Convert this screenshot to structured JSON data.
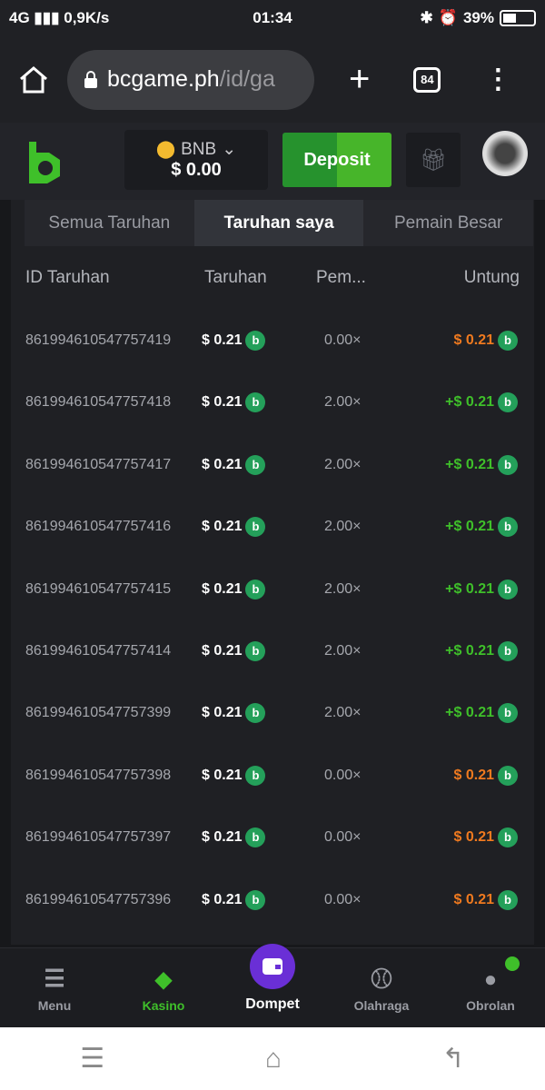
{
  "status": {
    "network": "4G",
    "speed": "0,9K/s",
    "time": "01:34",
    "battery": "39%"
  },
  "browser": {
    "url_host": "bcgame.ph",
    "url_path": "/id/ga",
    "tab_count": "84"
  },
  "header": {
    "currency": "BNB",
    "balance": "$ 0.00",
    "deposit_label": "Deposit"
  },
  "tabs": [
    {
      "label": "Semua Taruhan"
    },
    {
      "label": "Taruhan saya",
      "active": true
    },
    {
      "label": "Pemain Besar"
    }
  ],
  "columns": {
    "id": "ID Taruhan",
    "bet": "Taruhan",
    "mult": "Pem...",
    "profit": "Untung"
  },
  "rows": [
    {
      "id": "861994610547757419",
      "bet": "$ 0.21",
      "mult": "0.00×",
      "profit": "$ 0.21",
      "win": false
    },
    {
      "id": "861994610547757418",
      "bet": "$ 0.21",
      "mult": "2.00×",
      "profit": "+$ 0.21",
      "win": true
    },
    {
      "id": "861994610547757417",
      "bet": "$ 0.21",
      "mult": "2.00×",
      "profit": "+$ 0.21",
      "win": true
    },
    {
      "id": "861994610547757416",
      "bet": "$ 0.21",
      "mult": "2.00×",
      "profit": "+$ 0.21",
      "win": true
    },
    {
      "id": "861994610547757415",
      "bet": "$ 0.21",
      "mult": "2.00×",
      "profit": "+$ 0.21",
      "win": true
    },
    {
      "id": "861994610547757414",
      "bet": "$ 0.21",
      "mult": "2.00×",
      "profit": "+$ 0.21",
      "win": true
    },
    {
      "id": "861994610547757399",
      "bet": "$ 0.21",
      "mult": "2.00×",
      "profit": "+$ 0.21",
      "win": true
    },
    {
      "id": "861994610547757398",
      "bet": "$ 0.21",
      "mult": "0.00×",
      "profit": "$ 0.21",
      "win": false
    },
    {
      "id": "861994610547757397",
      "bet": "$ 0.21",
      "mult": "0.00×",
      "profit": "$ 0.21",
      "win": false
    },
    {
      "id": "861994610547757396",
      "bet": "$ 0.21",
      "mult": "0.00×",
      "profit": "$ 0.21",
      "win": false
    }
  ],
  "nav": [
    {
      "label": "Menu",
      "icon": "menu-icon"
    },
    {
      "label": "Kasino",
      "icon": "casino-icon"
    },
    {
      "label": "Dompet",
      "icon": "wallet-icon"
    },
    {
      "label": "Olahraga",
      "icon": "sports-icon"
    },
    {
      "label": "Obrolan",
      "icon": "chat-icon"
    }
  ],
  "colors": {
    "win": "#3fc02a",
    "loss": "#f07a1f",
    "accent": "#3fc02a",
    "wallet": "#6a2fd6"
  }
}
